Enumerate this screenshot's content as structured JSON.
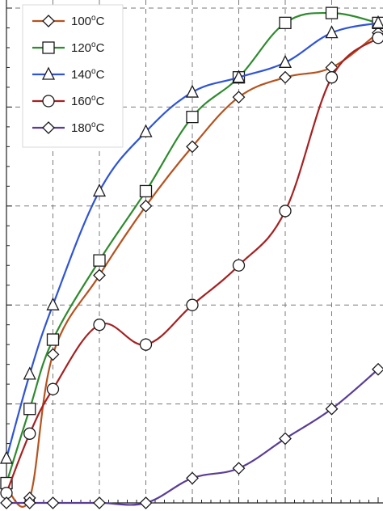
{
  "chart_data": {
    "type": "line",
    "title": "",
    "xlabel": "",
    "ylabel": "",
    "grid": true,
    "legend_position": "top-left",
    "x": [
      0,
      0.5,
      1,
      2,
      3,
      4,
      5,
      6,
      7,
      8
    ],
    "xlim": [
      0,
      8
    ],
    "ylim": [
      0,
      100
    ],
    "series": [
      {
        "name": "100°C",
        "marker": "diamond",
        "color": "#b5531f",
        "values": [
          3,
          1,
          30,
          46,
          60,
          72,
          82,
          86,
          88,
          95
        ]
      },
      {
        "name": "120°C",
        "marker": "square",
        "color": "#2e8b2e",
        "values": [
          4,
          19,
          33,
          49,
          63,
          78,
          86,
          97,
          99,
          97
        ]
      },
      {
        "name": "140°C",
        "marker": "triangle",
        "color": "#2f54d6",
        "values": [
          9,
          26,
          40,
          63,
          75,
          83,
          86,
          89,
          95,
          97
        ]
      },
      {
        "name": "160°C",
        "marker": "circle",
        "color": "#a52121",
        "values": [
          2,
          14,
          23,
          36,
          32,
          40,
          48,
          59,
          86,
          94
        ]
      },
      {
        "name": "180°C",
        "marker": "diamond",
        "color": "#5a3d96",
        "values": [
          0,
          0,
          0,
          0,
          0,
          5,
          7,
          13,
          19,
          27
        ]
      }
    ]
  }
}
